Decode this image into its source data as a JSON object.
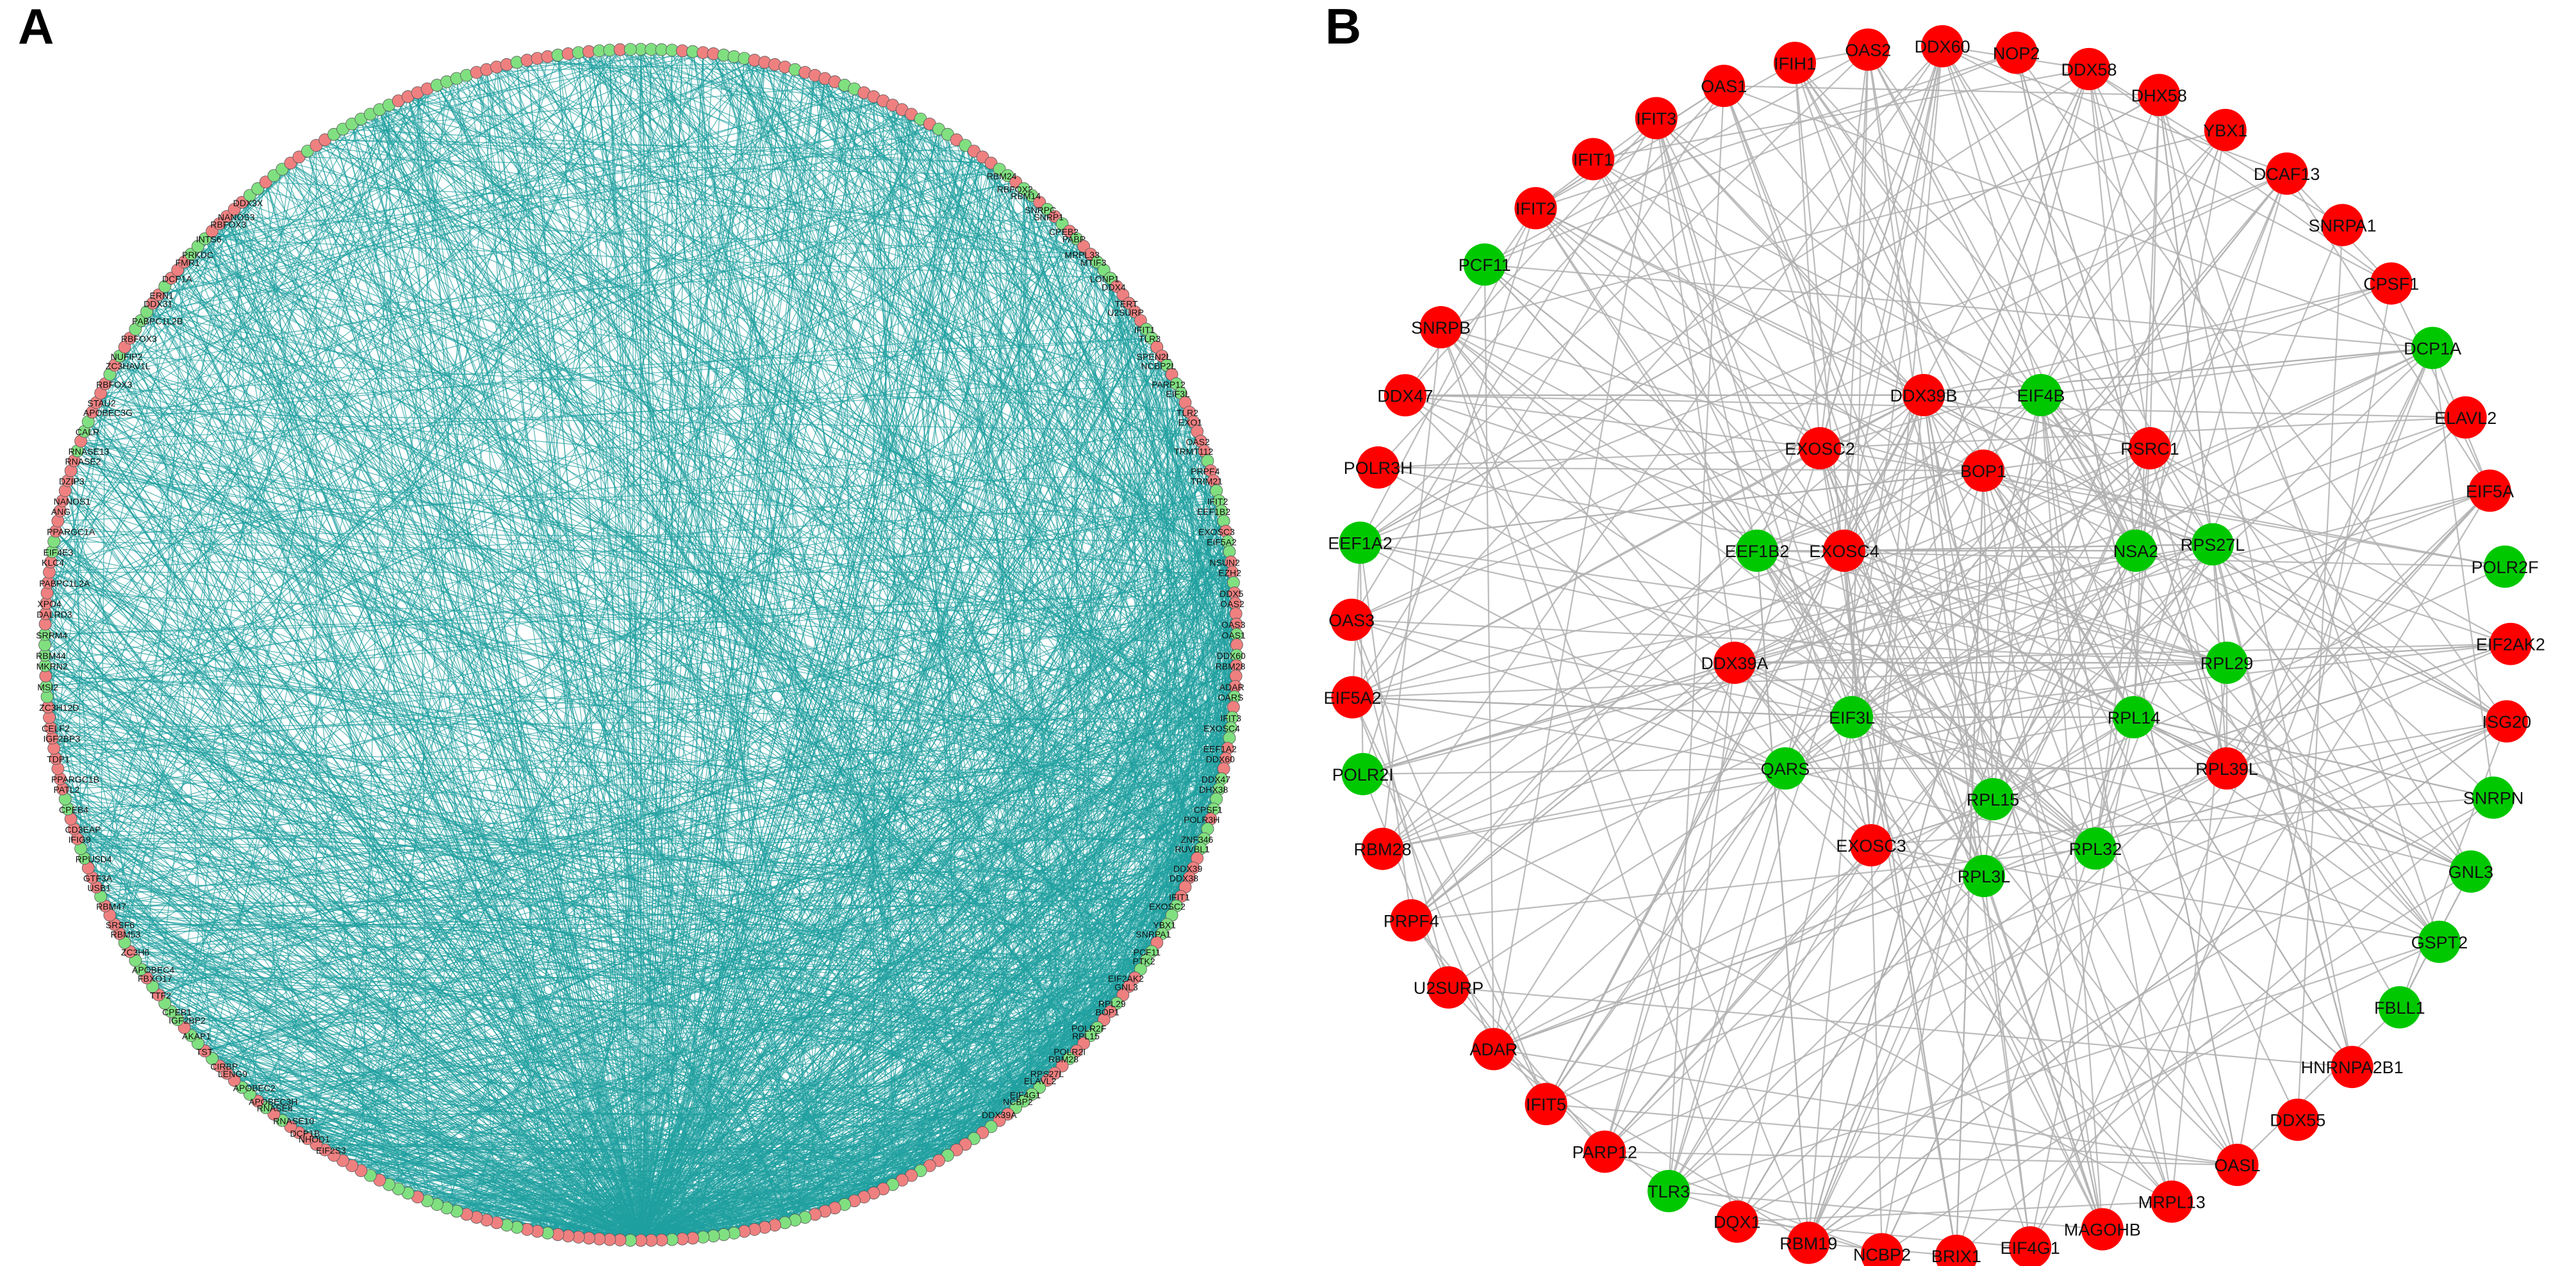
{
  "colors": {
    "up": "#ff0000",
    "down": "#00c800",
    "edge_a": "#1fa0a0",
    "edge_b": "#b0b0b0",
    "up_a": "#ef8080",
    "down_a": "#80e080"
  },
  "panel_a": {
    "letter": "A",
    "left_labels": [
      "DDX3X",
      "NANOS3",
      "RBFOX3",
      "INTS6",
      "PRKDC",
      "FMR1",
      "DCP1A",
      "ERN1",
      "DDX31",
      "PABPC1L2B",
      "RBFOX3",
      "NUFIP2",
      "ZC3HAV1L",
      "RBFOX3",
      "STAU2",
      "APOBEC3G",
      "CALR",
      "RNASE13",
      "RNASE2",
      "DZIP3",
      "NANOS1",
      "ANG",
      "PPARGC1A",
      "EIF4E3",
      "KLC4",
      "PABPC1L2A",
      "XPO4",
      "DALRD3",
      "SRRM4",
      "RBM44",
      "MKRN2",
      "MSI2",
      "ZC3H12D",
      "CELF2",
      "IGF2BP3",
      "TDP1",
      "PPARGC1B",
      "PATL2",
      "CPEB4",
      "CD3EAP",
      "IFIG9",
      "RPUSD4",
      "GTF3A",
      "USB1",
      "RBM47",
      "SRSF6",
      "RBM53",
      "ZC3H6",
      "APOBEC4",
      "FBXO17",
      "TTF2",
      "CPEB1",
      "IGF2BP2",
      "AKAP1",
      "TST",
      "CIRBP",
      "LENG9",
      "APOBEC2",
      "APOBEC3H",
      "RNASE8",
      "RNASE10",
      "DCP1B",
      "NHOD1",
      "EIF2S3"
    ],
    "right_labels": [
      "RBM24",
      "RBFOX2",
      "RBM14",
      "SNRPC",
      "SNRP1",
      "CPEB2",
      "PABP",
      "MRPL33",
      "MTIF3",
      "LONP1",
      "DDX4",
      "TERT",
      "U2SURP",
      "IFIT1",
      "TLR3",
      "SPEN2L",
      "NCBP2L",
      "PARP12",
      "EIF3L",
      "TLR2",
      "EXO1",
      "OAS2",
      "TRMT112",
      "PRPF4",
      "TRIM21",
      "IFIT2",
      "EEF1B2",
      "EXOSC3",
      "EIF5A2",
      "NSUN2",
      "EZH2",
      "DDX5",
      "OAS2",
      "OAS3",
      "OAS1",
      "DDX60",
      "RBM28",
      "ADAR",
      "OARS",
      "IFIT3",
      "EXOSC4",
      "EEF1A2",
      "DDX60",
      "DDX47",
      "DHX38",
      "CPSF1",
      "POLR3H",
      "ZNF346",
      "RUVBL1",
      "DDX39",
      "DDX38",
      "IFIT1",
      "EXOSC2",
      "YBX1",
      "SNRPA1",
      "PCF11",
      "PTK2",
      "EIF2AK2",
      "GNL3",
      "RPL29",
      "BOP1",
      "POLR2F",
      "RPL15",
      "POLR2I",
      "RBM28",
      "RPS27L",
      "ELAVL2",
      "EIF4G1",
      "NCBP2",
      "DDX39A"
    ]
  },
  "panel_b": {
    "letter": "B",
    "nodes": [
      {
        "label": "DDX60",
        "group": "up"
      },
      {
        "label": "NOP2",
        "group": "up"
      },
      {
        "label": "DDX58",
        "group": "up"
      },
      {
        "label": "DHX58",
        "group": "up"
      },
      {
        "label": "YBX1",
        "group": "up"
      },
      {
        "label": "DCAF13",
        "group": "up"
      },
      {
        "label": "SNRPA1",
        "group": "up"
      },
      {
        "label": "CPSF1",
        "group": "up"
      },
      {
        "label": "DCP1A",
        "group": "down"
      },
      {
        "label": "ELAVL2",
        "group": "up"
      },
      {
        "label": "EIF5A",
        "group": "up"
      },
      {
        "label": "POLR2F",
        "group": "down"
      },
      {
        "label": "EIF2AK2",
        "group": "up"
      },
      {
        "label": "ISG20",
        "group": "up"
      },
      {
        "label": "SNRPN",
        "group": "down"
      },
      {
        "label": "GNL3",
        "group": "down"
      },
      {
        "label": "GSPT2",
        "group": "down"
      },
      {
        "label": "FBLL1",
        "group": "down"
      },
      {
        "label": "HNRNPA2B1",
        "group": "up"
      },
      {
        "label": "DDX55",
        "group": "up"
      },
      {
        "label": "OASL",
        "group": "up"
      },
      {
        "label": "MRPL13",
        "group": "up"
      },
      {
        "label": "MAGOHB",
        "group": "up"
      },
      {
        "label": "EIF4G1",
        "group": "up"
      },
      {
        "label": "BRIX1",
        "group": "up"
      },
      {
        "label": "NCBP2",
        "group": "up"
      },
      {
        "label": "RBM19",
        "group": "up"
      },
      {
        "label": "DQX1",
        "group": "up"
      },
      {
        "label": "TLR3",
        "group": "down"
      },
      {
        "label": "PARP12",
        "group": "up"
      },
      {
        "label": "IFIT5",
        "group": "up"
      },
      {
        "label": "ADAR",
        "group": "up"
      },
      {
        "label": "U2SURP",
        "group": "up"
      },
      {
        "label": "PRPF4",
        "group": "up"
      },
      {
        "label": "RBM28",
        "group": "up"
      },
      {
        "label": "POLR2I",
        "group": "down"
      },
      {
        "label": "EIF5A2",
        "group": "up"
      },
      {
        "label": "OAS3",
        "group": "up"
      },
      {
        "label": "EEF1A2",
        "group": "down"
      },
      {
        "label": "POLR3H",
        "group": "up"
      },
      {
        "label": "DDX47",
        "group": "up"
      },
      {
        "label": "SNRPB",
        "group": "up"
      },
      {
        "label": "PCF11",
        "group": "down"
      },
      {
        "label": "IFIT2",
        "group": "up"
      },
      {
        "label": "IFIT1",
        "group": "up"
      },
      {
        "label": "IFIT3",
        "group": "up"
      },
      {
        "label": "OAS1",
        "group": "up"
      },
      {
        "label": "IFIH1",
        "group": "up"
      },
      {
        "label": "OAS2",
        "group": "up"
      },
      {
        "label": "DDX39B",
        "group": "up"
      },
      {
        "label": "EIF4B",
        "group": "down"
      },
      {
        "label": "EXOSC2",
        "group": "up"
      },
      {
        "label": "BOP1",
        "group": "up"
      },
      {
        "label": "RSRC1",
        "group": "up"
      },
      {
        "label": "EEF1B2",
        "group": "down"
      },
      {
        "label": "EXOSC4",
        "group": "up"
      },
      {
        "label": "NSA2",
        "group": "down"
      },
      {
        "label": "RPS27L",
        "group": "down"
      },
      {
        "label": "DDX39A",
        "group": "up"
      },
      {
        "label": "RPL29",
        "group": "down"
      },
      {
        "label": "EIF3L",
        "group": "down"
      },
      {
        "label": "RPL14",
        "group": "down"
      },
      {
        "label": "RPL39L",
        "group": "up"
      },
      {
        "label": "QARS",
        "group": "down"
      },
      {
        "label": "RPL15",
        "group": "down"
      },
      {
        "label": "EXOSC3",
        "group": "up"
      },
      {
        "label": "RPL32",
        "group": "down"
      },
      {
        "label": "RPL3L",
        "group": "down"
      }
    ]
  }
}
